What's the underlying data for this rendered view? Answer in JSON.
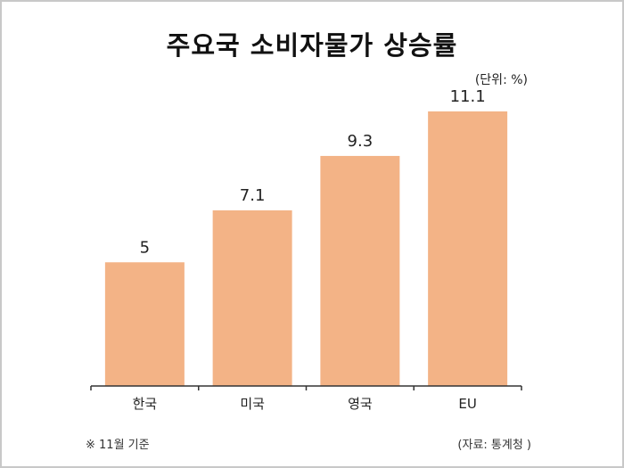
{
  "chart_data": {
    "type": "bar",
    "title": "주요국 소비자물가 상승률",
    "unit_note": "(단위: %)",
    "categories": [
      "한국",
      "미국",
      "영국",
      "EU"
    ],
    "values": [
      5,
      7.1,
      9.3,
      11.1
    ],
    "value_labels": [
      "5",
      "7.1",
      "9.3",
      "11.1"
    ],
    "bar_color": "#f3b386",
    "ylim": [
      0,
      12
    ],
    "grid": false,
    "footnote": "※ 11월 기준",
    "source": "(자료: 통계청 )"
  }
}
